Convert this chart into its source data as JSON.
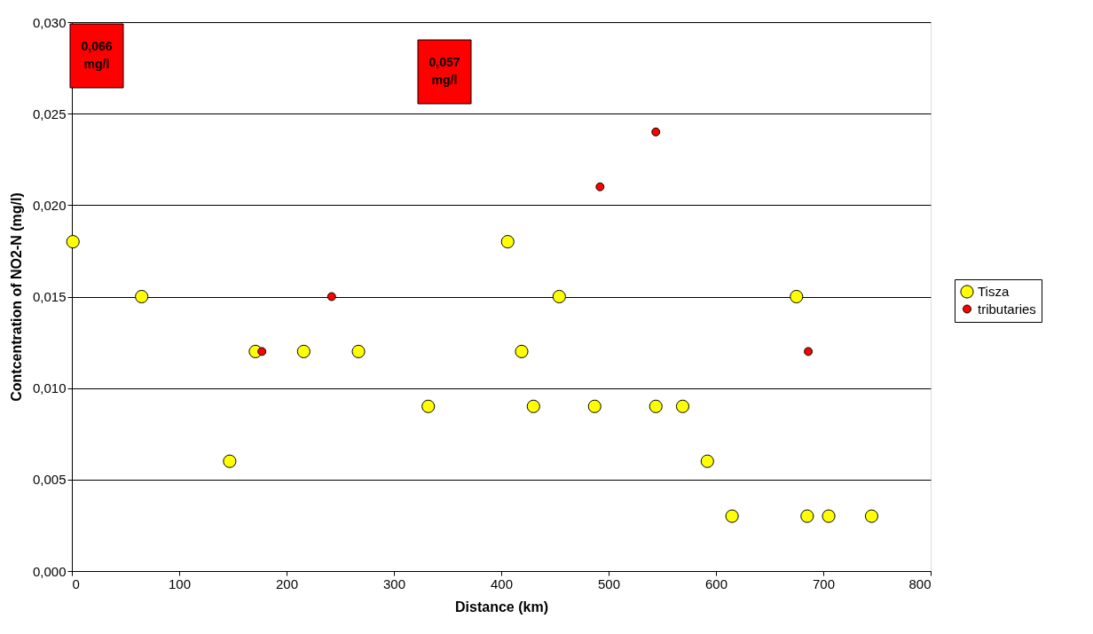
{
  "chart_data": {
    "type": "scatter",
    "xlabel": "Distance (km)",
    "ylabel": "Contcentration of NO2-N (mg/l)",
    "xlim": [
      0,
      800
    ],
    "xticks": [
      0,
      100,
      200,
      300,
      400,
      500,
      600,
      700,
      800
    ],
    "ylim": [
      0,
      0.03
    ],
    "yticks": [
      {
        "value": 0,
        "label": "0,000"
      },
      {
        "value": 0.005,
        "label": "0,005"
      },
      {
        "value": 0.01,
        "label": "0,010"
      },
      {
        "value": 0.015,
        "label": "0,015"
      },
      {
        "value": 0.02,
        "label": "0,020"
      },
      {
        "value": 0.025,
        "label": "0,025"
      },
      {
        "value": 0.03,
        "label": "0,030"
      }
    ],
    "grid": "y",
    "legend": "right",
    "marker": "circle",
    "series": [
      {
        "name": "Tisza",
        "color": "#ffff00",
        "x": [
          1,
          65,
          147,
          171,
          216,
          267,
          332,
          406,
          419,
          430,
          454,
          487,
          544,
          569,
          592,
          615,
          675,
          685,
          705,
          745
        ],
        "values": [
          0.018,
          0.015,
          0.006,
          0.012,
          0.012,
          0.012,
          0.009,
          0.018,
          0.012,
          0.009,
          0.015,
          0.009,
          0.009,
          0.009,
          0.006,
          0.003,
          0.015,
          0.003,
          0.003,
          0.003
        ]
      },
      {
        "name": "tributaries",
        "color": "#ff0000",
        "x": [
          177,
          242,
          492,
          544,
          686
        ],
        "values": [
          0.012,
          0.015,
          0.021,
          0.024,
          0.012
        ]
      }
    ],
    "annotations": [
      "0,066 mg/l",
      "0,057 mg/l"
    ]
  }
}
